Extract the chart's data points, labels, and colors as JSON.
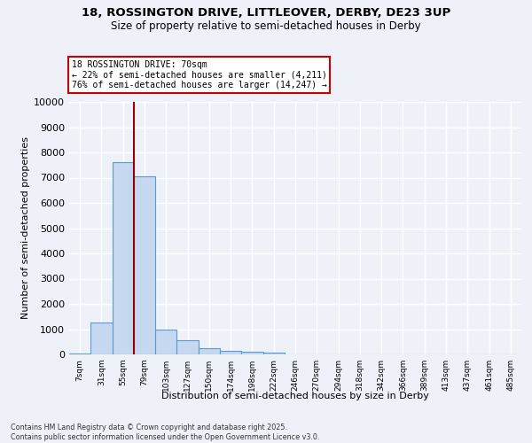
{
  "title_line1": "18, ROSSINGTON DRIVE, LITTLEOVER, DERBY, DE23 3UP",
  "title_line2": "Size of property relative to semi-detached houses in Derby",
  "xlabel": "Distribution of semi-detached houses by size in Derby",
  "ylabel": "Number of semi-detached properties",
  "categories": [
    "7sqm",
    "31sqm",
    "55sqm",
    "79sqm",
    "103sqm",
    "127sqm",
    "150sqm",
    "174sqm",
    "198sqm",
    "222sqm",
    "246sqm",
    "270sqm",
    "294sqm",
    "318sqm",
    "342sqm",
    "366sqm",
    "389sqm",
    "413sqm",
    "437sqm",
    "461sqm",
    "485sqm"
  ],
  "values": [
    50,
    1250,
    7600,
    7050,
    1000,
    550,
    250,
    150,
    100,
    80,
    0,
    0,
    0,
    0,
    0,
    0,
    0,
    0,
    0,
    0,
    0
  ],
  "bar_color": "#c5d8f0",
  "bar_edge_color": "#5b9bd5",
  "property_line_x": 2.5,
  "annotation_line1": "18 ROSSINGTON DRIVE: 70sqm",
  "annotation_line2": "← 22% of semi-detached houses are smaller (4,211)",
  "annotation_line3": "76% of semi-detached houses are larger (14,247) →",
  "ylim": [
    0,
    10000
  ],
  "yticks": [
    0,
    1000,
    2000,
    3000,
    4000,
    5000,
    6000,
    7000,
    8000,
    9000,
    10000
  ],
  "background_color": "#eef2f8",
  "grid_color": "#ffffff",
  "footer_line1": "Contains HM Land Registry data © Crown copyright and database right 2025.",
  "footer_line2": "Contains public sector information licensed under the Open Government Licence v3.0."
}
